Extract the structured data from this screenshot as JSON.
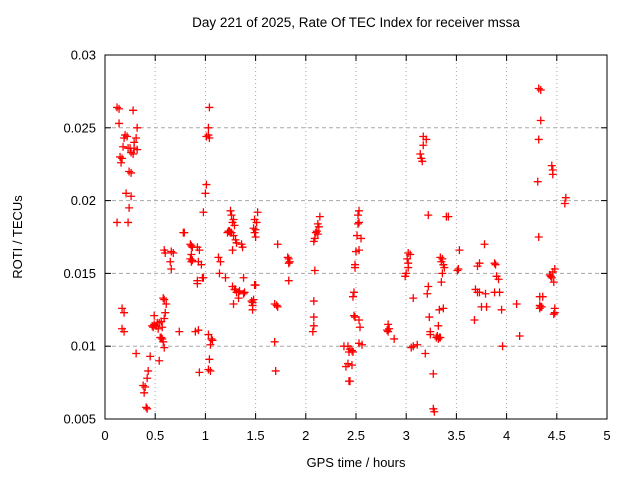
{
  "chart_data": {
    "type": "scatter",
    "title": "Day 221 of 2025, Rate Of TEC Index for receiver mssa",
    "xlabel": "GPS time / hours",
    "ylabel": "ROTI / TECUs",
    "xlim": [
      0,
      5
    ],
    "ylim": [
      0.005,
      0.03
    ],
    "grid": true,
    "legend_position": "none",
    "marker": {
      "shape": "plus",
      "color": "#ff0000",
      "size": 9
    },
    "grid_color": "#a8a8a8",
    "border_color": "#000000",
    "background": "#ffffff",
    "xticks": {
      "values": [
        0,
        0.5,
        1,
        1.5,
        2,
        2.5,
        3,
        3.5,
        4,
        4.5,
        5
      ],
      "labels": [
        "0",
        "0.5",
        "1",
        "1.5",
        "2",
        "2.5",
        "3",
        "3.5",
        "4",
        "4.5",
        "5"
      ]
    },
    "yticks": {
      "values": [
        0.005,
        0.01,
        0.015,
        0.02,
        0.025,
        0.03
      ],
      "labels": [
        "0.005",
        "0.01",
        "0.015",
        "0.02",
        "0.025",
        "0.03"
      ]
    },
    "points": [
      [
        0.12,
        0.0264
      ],
      [
        0.14,
        0.0263
      ],
      [
        0.28,
        0.0262
      ],
      [
        0.14,
        0.0253
      ],
      [
        0.32,
        0.025
      ],
      [
        0.2,
        0.0245
      ],
      [
        0.22,
        0.0244
      ],
      [
        0.19,
        0.0243
      ],
      [
        0.31,
        0.0243
      ],
      [
        0.29,
        0.024
      ],
      [
        0.18,
        0.0237
      ],
      [
        0.23,
        0.0236
      ],
      [
        0.25,
        0.0236
      ],
      [
        0.29,
        0.0236
      ],
      [
        0.32,
        0.0235
      ],
      [
        0.26,
        0.0233
      ],
      [
        0.28,
        0.0232
      ],
      [
        0.15,
        0.023
      ],
      [
        0.17,
        0.0229
      ],
      [
        0.16,
        0.0226
      ],
      [
        0.24,
        0.022
      ],
      [
        0.26,
        0.0219
      ],
      [
        0.21,
        0.0205
      ],
      [
        0.26,
        0.0203
      ],
      [
        0.24,
        0.0195
      ],
      [
        0.12,
        0.0185
      ],
      [
        0.23,
        0.0185
      ],
      [
        0.17,
        0.0126
      ],
      [
        0.19,
        0.0123
      ],
      [
        0.17,
        0.0112
      ],
      [
        0.19,
        0.011
      ],
      [
        0.31,
        0.0095
      ],
      [
        0.45,
        0.0093
      ],
      [
        0.43,
        0.0083
      ],
      [
        0.42,
        0.0078
      ],
      [
        0.38,
        0.0073
      ],
      [
        0.4,
        0.0072
      ],
      [
        0.39,
        0.0068
      ],
      [
        0.41,
        0.0058
      ],
      [
        0.42,
        0.0057
      ],
      [
        0.61,
        0.0129
      ],
      [
        0.58,
        0.0133
      ],
      [
        0.59,
        0.0132
      ],
      [
        0.49,
        0.0121
      ],
      [
        0.6,
        0.0123
      ],
      [
        0.59,
        0.0119
      ],
      [
        0.56,
        0.0117
      ],
      [
        0.52,
        0.0116
      ],
      [
        0.54,
        0.0116
      ],
      [
        0.49,
        0.0115
      ],
      [
        0.47,
        0.0114
      ],
      [
        0.51,
        0.0114
      ],
      [
        0.48,
        0.0113
      ],
      [
        0.53,
        0.0112
      ],
      [
        0.57,
        0.0113
      ],
      [
        0.55,
        0.0106
      ],
      [
        0.56,
        0.0106
      ],
      [
        0.57,
        0.0105
      ],
      [
        0.58,
        0.0103
      ],
      [
        0.59,
        0.0099
      ],
      [
        0.54,
        0.009
      ],
      [
        0.59,
        0.0166
      ],
      [
        0.6,
        0.0164
      ],
      [
        0.66,
        0.0165
      ],
      [
        0.68,
        0.0164
      ],
      [
        0.65,
        0.0158
      ],
      [
        0.66,
        0.0153
      ],
      [
        0.74,
        0.011
      ],
      [
        0.78,
        0.0178
      ],
      [
        0.79,
        0.0178
      ],
      [
        0.85,
        0.017
      ],
      [
        0.86,
        0.0169
      ],
      [
        0.87,
        0.0168
      ],
      [
        0.86,
        0.0163
      ],
      [
        0.85,
        0.016
      ],
      [
        0.87,
        0.0159
      ],
      [
        0.86,
        0.0158
      ],
      [
        0.92,
        0.0168
      ],
      [
        0.94,
        0.0166
      ],
      [
        0.93,
        0.0158
      ],
      [
        0.96,
        0.0156
      ],
      [
        0.97,
        0.0147
      ],
      [
        0.98,
        0.0147
      ],
      [
        0.92,
        0.0145
      ],
      [
        0.92,
        0.0143
      ],
      [
        0.9,
        0.011
      ],
      [
        0.93,
        0.0111
      ],
      [
        0.94,
        0.0082
      ],
      [
        1.04,
        0.0264
      ],
      [
        1.03,
        0.025
      ],
      [
        1.01,
        0.0244
      ],
      [
        1.03,
        0.0245
      ],
      [
        1.04,
        0.0243
      ],
      [
        1.01,
        0.0211
      ],
      [
        1.0,
        0.0205
      ],
      [
        0.98,
        0.0192
      ],
      [
        1.03,
        0.0108
      ],
      [
        1.06,
        0.0105
      ],
      [
        1.07,
        0.0104
      ],
      [
        1.05,
        0.0101
      ],
      [
        1.04,
        0.0091
      ],
      [
        1.03,
        0.0084
      ],
      [
        1.05,
        0.0083
      ],
      [
        1.13,
        0.0161
      ],
      [
        1.15,
        0.0158
      ],
      [
        1.14,
        0.015
      ],
      [
        1.2,
        0.0147
      ],
      [
        1.25,
        0.0193
      ],
      [
        1.26,
        0.019
      ],
      [
        1.28,
        0.0187
      ],
      [
        1.27,
        0.0185
      ],
      [
        1.29,
        0.0183
      ],
      [
        1.23,
        0.0179
      ],
      [
        1.24,
        0.0179
      ],
      [
        1.22,
        0.0178
      ],
      [
        1.25,
        0.0178
      ],
      [
        1.26,
        0.0178
      ],
      [
        1.28,
        0.0176
      ],
      [
        1.3,
        0.0173
      ],
      [
        1.31,
        0.0171
      ],
      [
        1.27,
        0.0166
      ],
      [
        1.36,
        0.017
      ],
      [
        1.37,
        0.0168
      ],
      [
        1.38,
        0.0147
      ],
      [
        1.27,
        0.0141
      ],
      [
        1.29,
        0.0139
      ],
      [
        1.3,
        0.0139
      ],
      [
        1.31,
        0.0137
      ],
      [
        1.33,
        0.0137
      ],
      [
        1.34,
        0.0138
      ],
      [
        1.33,
        0.0133
      ],
      [
        1.38,
        0.0136
      ],
      [
        1.39,
        0.0137
      ],
      [
        1.28,
        0.0129
      ],
      [
        1.52,
        0.0192
      ],
      [
        1.49,
        0.0187
      ],
      [
        1.51,
        0.0185
      ],
      [
        1.48,
        0.0181
      ],
      [
        1.5,
        0.018
      ],
      [
        1.49,
        0.0178
      ],
      [
        1.5,
        0.0175
      ],
      [
        1.49,
        0.0142
      ],
      [
        1.5,
        0.0142
      ],
      [
        1.48,
        0.0132
      ],
      [
        1.46,
        0.0131
      ],
      [
        1.47,
        0.013
      ],
      [
        1.47,
        0.0128
      ],
      [
        1.47,
        0.0125
      ],
      [
        1.72,
        0.017
      ],
      [
        1.82,
        0.0161
      ],
      [
        1.83,
        0.016
      ],
      [
        1.84,
        0.0158
      ],
      [
        1.83,
        0.0157
      ],
      [
        1.83,
        0.0145
      ],
      [
        1.69,
        0.0129
      ],
      [
        1.71,
        0.0128
      ],
      [
        1.72,
        0.0127
      ],
      [
        1.69,
        0.0103
      ],
      [
        1.7,
        0.0083
      ],
      [
        2.14,
        0.0189
      ],
      [
        2.12,
        0.0184
      ],
      [
        2.13,
        0.0182
      ],
      [
        2.11,
        0.0179
      ],
      [
        2.1,
        0.0178
      ],
      [
        2.12,
        0.0177
      ],
      [
        2.09,
        0.0174
      ],
      [
        2.08,
        0.0172
      ],
      [
        2.09,
        0.0152
      ],
      [
        2.08,
        0.0131
      ],
      [
        2.08,
        0.012
      ],
      [
        2.08,
        0.0114
      ],
      [
        2.07,
        0.011
      ],
      [
        2.53,
        0.0193
      ],
      [
        2.52,
        0.019
      ],
      [
        2.53,
        0.0185
      ],
      [
        2.52,
        0.0184
      ],
      [
        2.51,
        0.0176
      ],
      [
        2.55,
        0.0174
      ],
      [
        2.53,
        0.0166
      ],
      [
        2.5,
        0.0165
      ],
      [
        2.49,
        0.0156
      ],
      [
        2.49,
        0.0154
      ],
      [
        2.48,
        0.0137
      ],
      [
        2.47,
        0.0134
      ],
      [
        2.48,
        0.0121
      ],
      [
        2.49,
        0.012
      ],
      [
        2.53,
        0.0118
      ],
      [
        2.54,
        0.0113
      ],
      [
        2.53,
        0.0102
      ],
      [
        2.56,
        0.0101
      ],
      [
        2.38,
        0.01
      ],
      [
        2.42,
        0.01
      ],
      [
        2.44,
        0.0098
      ],
      [
        2.46,
        0.0097
      ],
      [
        2.43,
        0.0096
      ],
      [
        2.47,
        0.0096
      ],
      [
        2.42,
        0.0088
      ],
      [
        2.46,
        0.0087
      ],
      [
        2.4,
        0.0086
      ],
      [
        2.43,
        0.0076
      ],
      [
        2.44,
        0.0076
      ],
      [
        2.82,
        0.0115
      ],
      [
        2.83,
        0.0112
      ],
      [
        2.81,
        0.0111
      ],
      [
        2.82,
        0.011
      ],
      [
        2.88,
        0.0105
      ],
      [
        3.02,
        0.0164
      ],
      [
        3.04,
        0.0163
      ],
      [
        3.01,
        0.016
      ],
      [
        3.02,
        0.0157
      ],
      [
        3.02,
        0.0154
      ],
      [
        3.0,
        0.015
      ],
      [
        2.99,
        0.0148
      ],
      [
        3.07,
        0.0133
      ],
      [
        3.07,
        0.01
      ],
      [
        3.05,
        0.0099
      ],
      [
        3.11,
        0.0101
      ],
      [
        3.17,
        0.0244
      ],
      [
        3.2,
        0.0242
      ],
      [
        3.17,
        0.0238
      ],
      [
        3.14,
        0.0232
      ],
      [
        3.15,
        0.0229
      ],
      [
        3.16,
        0.0227
      ],
      [
        3.22,
        0.019
      ],
      [
        3.22,
        0.0141
      ],
      [
        3.21,
        0.0136
      ],
      [
        3.23,
        0.012
      ],
      [
        3.33,
        0.0125
      ],
      [
        3.32,
        0.0114
      ],
      [
        3.24,
        0.011
      ],
      [
        3.24,
        0.0108
      ],
      [
        3.31,
        0.0107
      ],
      [
        3.3,
        0.0106
      ],
      [
        3.33,
        0.0106
      ],
      [
        3.32,
        0.0105
      ],
      [
        3.19,
        0.0095
      ],
      [
        3.27,
        0.0081
      ],
      [
        3.27,
        0.0057
      ],
      [
        3.28,
        0.0055
      ],
      [
        3.34,
        0.0161
      ],
      [
        3.36,
        0.016
      ],
      [
        3.35,
        0.0158
      ],
      [
        3.37,
        0.0156
      ],
      [
        3.38,
        0.0154
      ],
      [
        3.36,
        0.015
      ],
      [
        3.35,
        0.0144
      ],
      [
        3.37,
        0.0126
      ],
      [
        3.34,
        0.0106
      ],
      [
        3.4,
        0.0189
      ],
      [
        3.42,
        0.0189
      ],
      [
        3.53,
        0.0166
      ],
      [
        3.52,
        0.0153
      ],
      [
        3.51,
        0.0152
      ],
      [
        3.78,
        0.017
      ],
      [
        3.73,
        0.0157
      ],
      [
        3.71,
        0.0155
      ],
      [
        3.69,
        0.0139
      ],
      [
        3.71,
        0.0137
      ],
      [
        3.73,
        0.0137
      ],
      [
        3.79,
        0.0136
      ],
      [
        3.75,
        0.0127
      ],
      [
        3.8,
        0.0127
      ],
      [
        3.68,
        0.0118
      ],
      [
        3.88,
        0.0157
      ],
      [
        3.89,
        0.0156
      ],
      [
        3.9,
        0.0148
      ],
      [
        3.92,
        0.0146
      ],
      [
        3.88,
        0.0137
      ],
      [
        3.93,
        0.0137
      ],
      [
        3.95,
        0.0125
      ],
      [
        3.96,
        0.01
      ],
      [
        4.1,
        0.0129
      ],
      [
        4.13,
        0.0107
      ],
      [
        4.32,
        0.0277
      ],
      [
        4.34,
        0.0276
      ],
      [
        4.34,
        0.0255
      ],
      [
        4.32,
        0.0242
      ],
      [
        4.45,
        0.0224
      ],
      [
        4.46,
        0.0221
      ],
      [
        4.46,
        0.0218
      ],
      [
        4.31,
        0.0213
      ],
      [
        4.32,
        0.0175
      ],
      [
        4.48,
        0.0153
      ],
      [
        4.46,
        0.0151
      ],
      [
        4.43,
        0.0149
      ],
      [
        4.44,
        0.0148
      ],
      [
        4.45,
        0.0147
      ],
      [
        4.47,
        0.0144
      ],
      [
        4.33,
        0.0134
      ],
      [
        4.36,
        0.0134
      ],
      [
        4.33,
        0.0128
      ],
      [
        4.34,
        0.0127
      ],
      [
        4.35,
        0.0127
      ],
      [
        4.33,
        0.0126
      ],
      [
        4.48,
        0.0126
      ],
      [
        4.48,
        0.0123
      ],
      [
        4.47,
        0.0122
      ],
      [
        4.59,
        0.0202
      ],
      [
        4.58,
        0.0198
      ]
    ]
  }
}
